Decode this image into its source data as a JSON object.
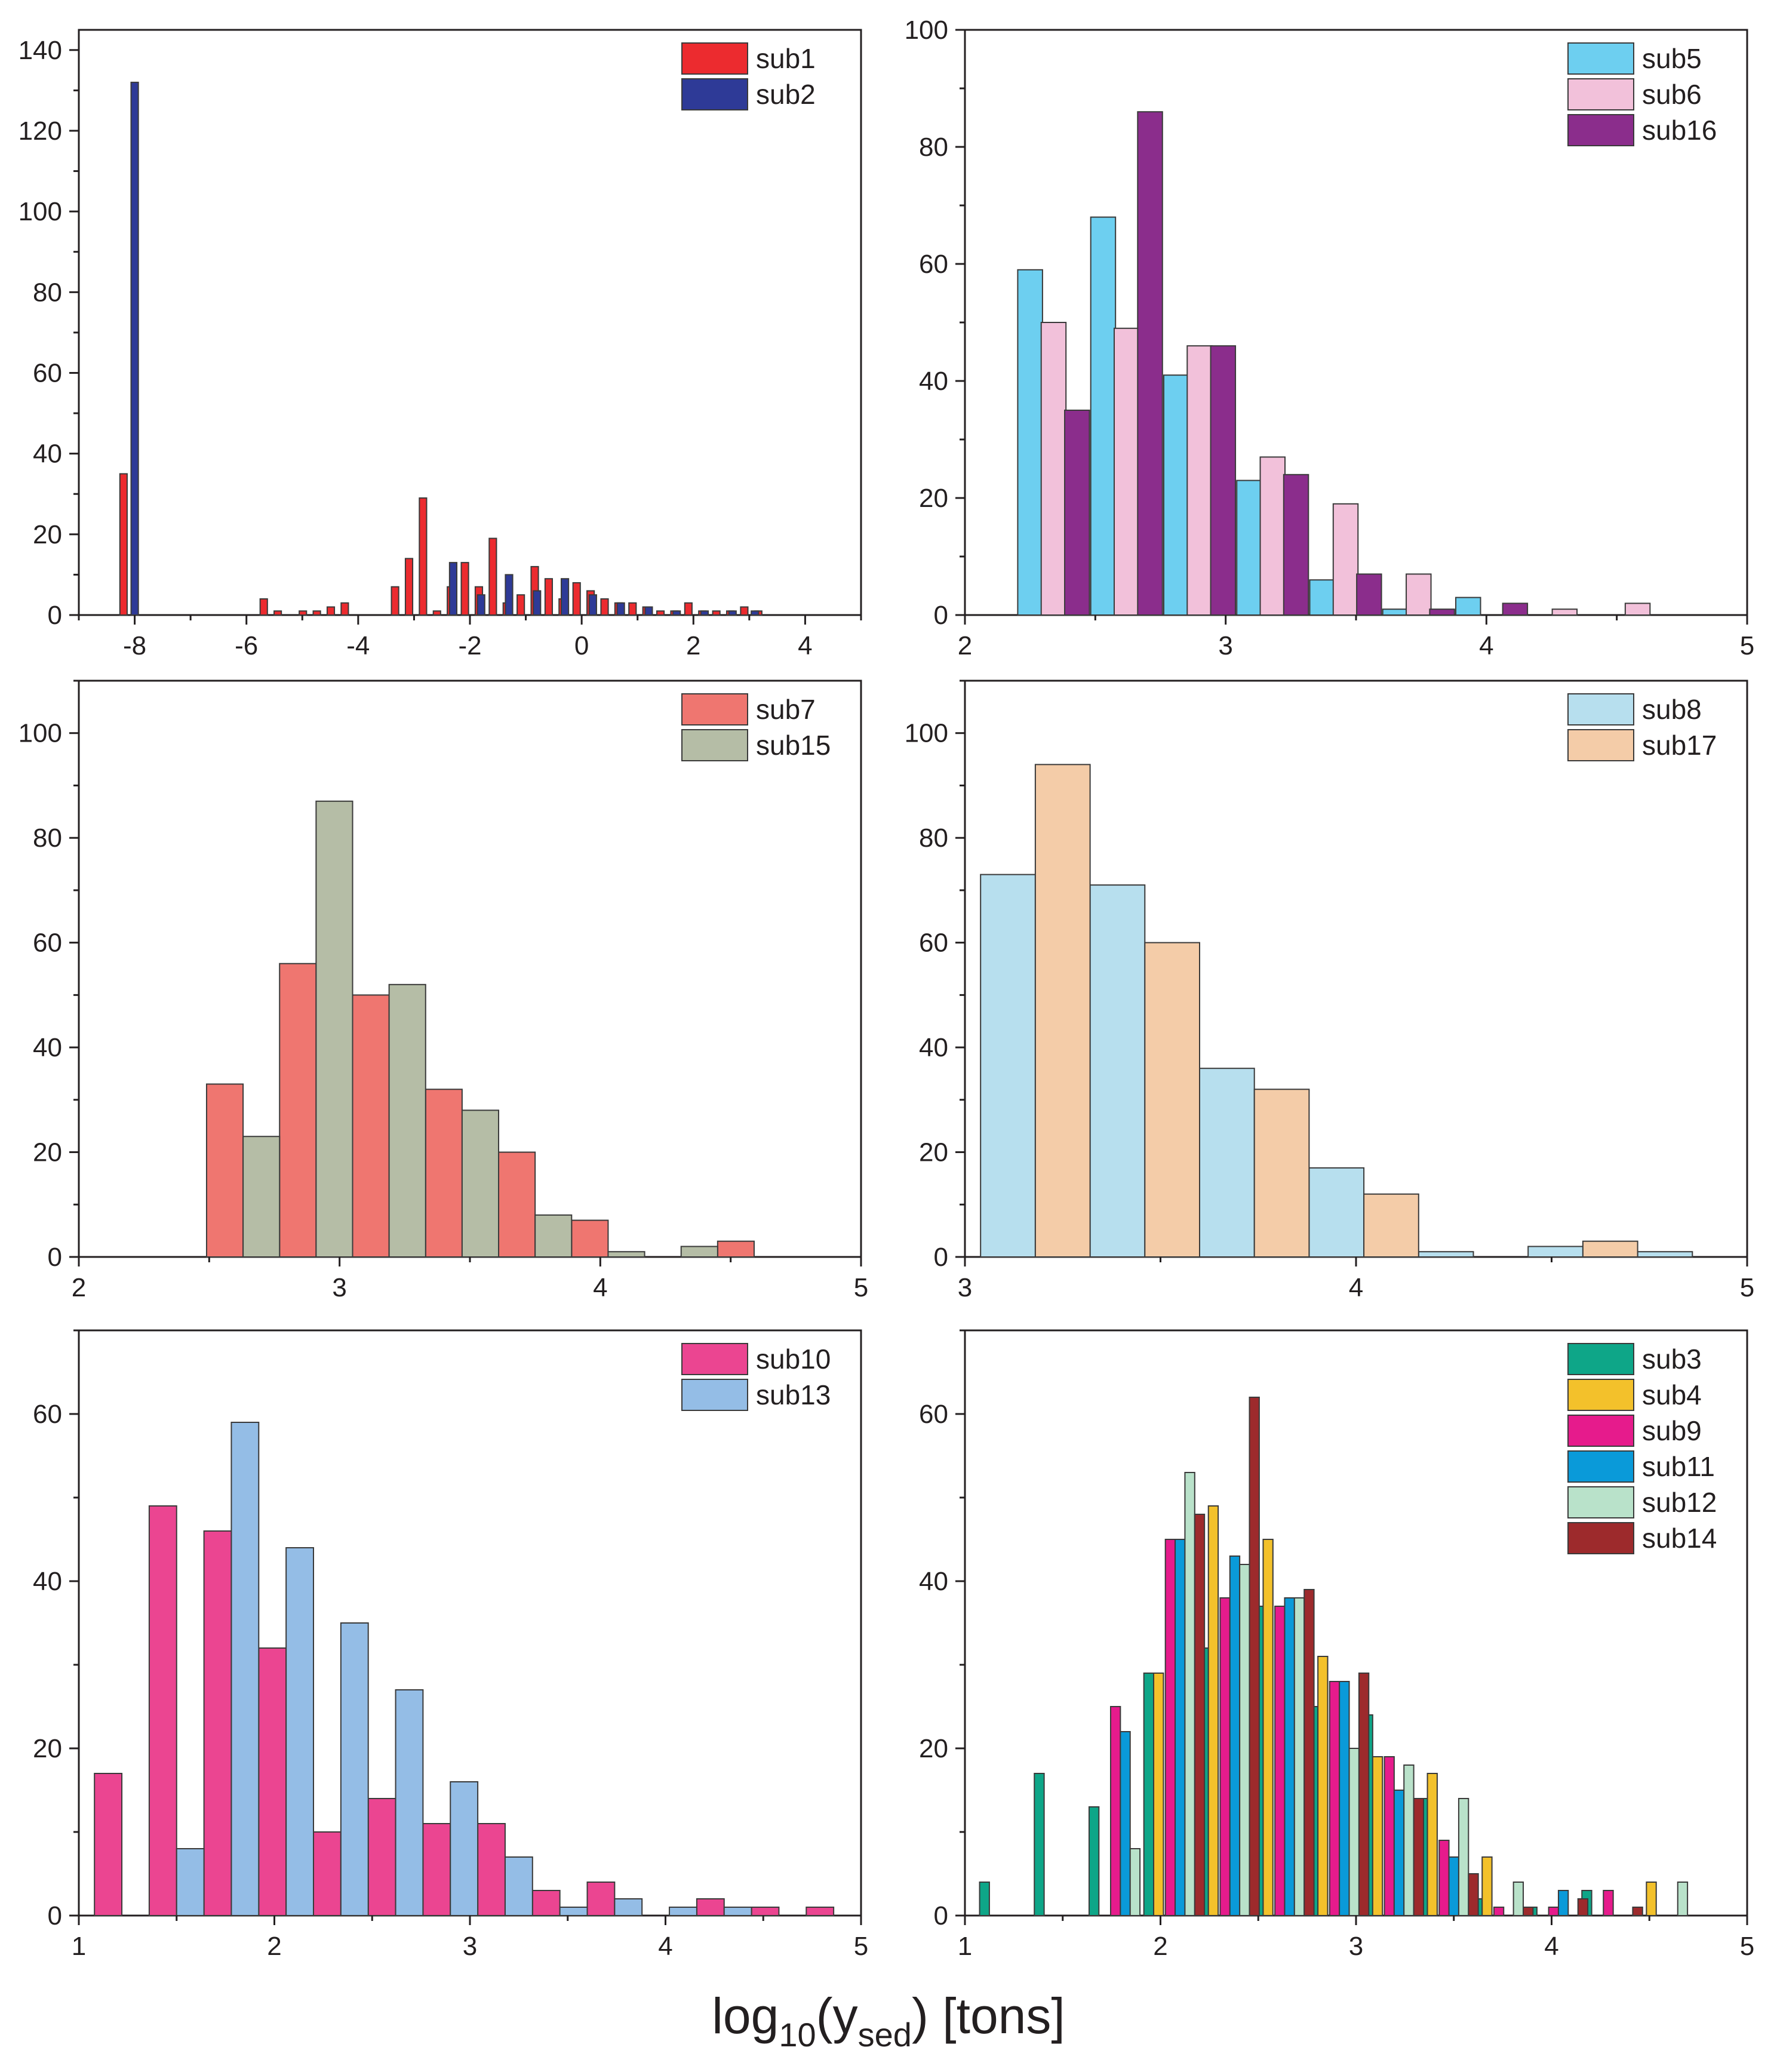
{
  "figure": {
    "xlabel": {
      "main": "log",
      "base": "10",
      "open": "(y",
      "sub": "sed",
      "close": ") [tons]"
    }
  },
  "chart_data": [
    {
      "type": "bar",
      "id": "p1",
      "xlim": [
        -9,
        5
      ],
      "ylim": [
        0,
        145
      ],
      "xticks": [
        -8,
        -6,
        -4,
        -2,
        0,
        2,
        4
      ],
      "yticks": [
        0,
        20,
        40,
        60,
        80,
        100,
        120,
        140
      ],
      "bar_width": 0.13,
      "series": [
        {
          "name": "sub1",
          "color": "#ec2b2f",
          "offset": -0.14,
          "bins": [
            [
              -8.06,
              35
            ],
            [
              -5.55,
              4
            ],
            [
              -5.3,
              1
            ],
            [
              -4.85,
              1
            ],
            [
              -4.6,
              1
            ],
            [
              -4.35,
              2
            ],
            [
              -4.1,
              3
            ],
            [
              -3.2,
              7
            ],
            [
              -2.95,
              14
            ],
            [
              -2.7,
              29
            ],
            [
              -2.45,
              1
            ],
            [
              -2.2,
              7
            ],
            [
              -1.95,
              13
            ],
            [
              -1.7,
              7
            ],
            [
              -1.45,
              19
            ],
            [
              -1.2,
              3
            ],
            [
              -0.95,
              5
            ],
            [
              -0.7,
              12
            ],
            [
              -0.45,
              9
            ],
            [
              -0.2,
              4
            ],
            [
              0.05,
              8
            ],
            [
              0.3,
              6
            ],
            [
              0.55,
              4
            ],
            [
              0.8,
              3
            ],
            [
              1.05,
              3
            ],
            [
              1.3,
              2
            ],
            [
              1.55,
              1
            ],
            [
              1.8,
              1
            ],
            [
              2.05,
              3
            ],
            [
              2.3,
              1
            ],
            [
              2.55,
              1
            ],
            [
              2.8,
              1
            ],
            [
              3.05,
              2
            ],
            [
              3.3,
              1
            ]
          ]
        },
        {
          "name": "sub2",
          "color": "#2e3a97",
          "offset": 0,
          "bins": [
            [
              -8.0,
              132
            ],
            [
              -2.3,
              13
            ],
            [
              -1.8,
              5
            ],
            [
              -1.3,
              10
            ],
            [
              -0.8,
              6
            ],
            [
              -0.3,
              9
            ],
            [
              0.2,
              5
            ],
            [
              0.7,
              3
            ],
            [
              1.2,
              2
            ],
            [
              1.7,
              1
            ],
            [
              2.2,
              1
            ],
            [
              2.7,
              1
            ],
            [
              3.1,
              1
            ]
          ]
        }
      ],
      "legend": {
        "location": "top-right"
      }
    },
    {
      "type": "bar",
      "id": "p2",
      "xlim": [
        2,
        5
      ],
      "ylim": [
        0,
        100
      ],
      "xticks": [
        2,
        3,
        4,
        5
      ],
      "yticks": [
        0,
        20,
        40,
        60,
        80,
        100
      ],
      "bar_width": 0.095,
      "series": [
        {
          "name": "sub5",
          "color": "#6dcff0",
          "offset": 0,
          "bins": [
            [
              2.25,
              59
            ],
            [
              2.53,
              68
            ],
            [
              2.81,
              41
            ],
            [
              3.09,
              23
            ],
            [
              3.37,
              6
            ],
            [
              3.65,
              1
            ],
            [
              3.93,
              3
            ]
          ]
        },
        {
          "name": "sub6",
          "color": "#f2c1da",
          "offset": 0,
          "bins": [
            [
              2.34,
              50
            ],
            [
              2.62,
              49
            ],
            [
              2.9,
              46
            ],
            [
              3.18,
              27
            ],
            [
              3.46,
              19
            ],
            [
              3.74,
              7
            ],
            [
              4.02,
              0
            ],
            [
              4.3,
              1
            ],
            [
              4.58,
              2
            ]
          ]
        },
        {
          "name": "sub16",
          "color": "#8b2d8c",
          "offset": 0,
          "bins": [
            [
              2.43,
              35
            ],
            [
              2.71,
              86
            ],
            [
              2.99,
              46
            ],
            [
              3.27,
              24
            ],
            [
              3.55,
              7
            ],
            [
              3.83,
              1
            ],
            [
              4.11,
              2
            ]
          ]
        }
      ],
      "legend": {
        "location": "top-right"
      }
    },
    {
      "type": "bar",
      "id": "p3",
      "xlim": [
        2,
        5
      ],
      "ylim": [
        0,
        110
      ],
      "xticks": [
        2,
        3,
        4,
        5
      ],
      "yticks": [
        0,
        20,
        40,
        60,
        80,
        100
      ],
      "bar_width": 0.14,
      "series": [
        {
          "name": "sub7",
          "color": "#ef7670",
          "offset": 0,
          "bins": [
            [
              2.56,
              33
            ],
            [
              2.84,
              56
            ],
            [
              3.12,
              50
            ],
            [
              3.4,
              32
            ],
            [
              3.68,
              20
            ],
            [
              3.96,
              7
            ],
            [
              4.52,
              3
            ]
          ]
        },
        {
          "name": "sub15",
          "color": "#b5bda6",
          "offset": 0,
          "bins": [
            [
              2.7,
              23
            ],
            [
              2.98,
              87
            ],
            [
              3.26,
              52
            ],
            [
              3.54,
              28
            ],
            [
              3.82,
              8
            ],
            [
              4.1,
              1
            ],
            [
              4.38,
              2
            ]
          ]
        }
      ],
      "legend": {
        "location": "top-right"
      }
    },
    {
      "type": "bar",
      "id": "p4",
      "xlim": [
        3,
        5
      ],
      "ylim": [
        0,
        110
      ],
      "xticks": [
        3,
        4,
        5
      ],
      "yticks": [
        0,
        20,
        40,
        60,
        80,
        100
      ],
      "bar_width": 0.14,
      "series": [
        {
          "name": "sub8",
          "color": "#b7dfee",
          "offset": 0,
          "bins": [
            [
              3.11,
              73
            ],
            [
              3.39,
              71
            ],
            [
              3.67,
              36
            ],
            [
              3.95,
              17
            ],
            [
              4.23,
              1
            ],
            [
              4.51,
              2
            ],
            [
              4.79,
              1
            ]
          ]
        },
        {
          "name": "sub17",
          "color": "#f4cca8",
          "offset": 0,
          "bins": [
            [
              3.25,
              94
            ],
            [
              3.53,
              60
            ],
            [
              3.81,
              32
            ],
            [
              4.09,
              12
            ],
            [
              4.65,
              3
            ]
          ]
        }
      ],
      "legend": {
        "location": "top-right"
      }
    },
    {
      "type": "bar",
      "id": "p5",
      "xlim": [
        1,
        5
      ],
      "ylim": [
        0,
        70
      ],
      "xticks": [
        1,
        2,
        3,
        4,
        5
      ],
      "yticks": [
        0,
        20,
        40,
        60
      ],
      "bar_width": 0.14,
      "series": [
        {
          "name": "sub10",
          "color": "#eb4591",
          "offset": 0,
          "bins": [
            [
              1.15,
              17
            ],
            [
              1.43,
              49
            ],
            [
              1.71,
              46
            ],
            [
              1.99,
              32
            ],
            [
              2.27,
              10
            ],
            [
              2.55,
              14
            ],
            [
              2.83,
              11
            ],
            [
              3.11,
              11
            ],
            [
              3.39,
              3
            ],
            [
              3.67,
              4
            ],
            [
              4.23,
              2
            ],
            [
              4.51,
              1
            ],
            [
              4.79,
              1
            ]
          ]
        },
        {
          "name": "sub13",
          "color": "#94bde6",
          "offset": 0,
          "bins": [
            [
              1.57,
              8
            ],
            [
              1.85,
              59
            ],
            [
              2.13,
              44
            ],
            [
              2.41,
              35
            ],
            [
              2.69,
              27
            ],
            [
              2.97,
              16
            ],
            [
              3.25,
              7
            ],
            [
              3.53,
              1
            ],
            [
              3.81,
              2
            ],
            [
              4.09,
              1
            ],
            [
              4.37,
              1
            ]
          ]
        }
      ],
      "legend": {
        "location": "top-right"
      }
    },
    {
      "type": "bar",
      "id": "p6",
      "xlim": [
        1,
        5
      ],
      "ylim": [
        0,
        70
      ],
      "xticks": [
        1,
        2,
        3,
        4,
        5
      ],
      "yticks": [
        0,
        20,
        40,
        60
      ],
      "bar_width": 0.05,
      "series": [
        {
          "name": "sub3",
          "color": "#0ea688",
          "offset": 0,
          "bins": [
            [
              1.1,
              4
            ],
            [
              1.38,
              17
            ],
            [
              1.66,
              13
            ],
            [
              1.94,
              29
            ],
            [
              2.22,
              32
            ],
            [
              2.5,
              37
            ],
            [
              2.78,
              25
            ],
            [
              3.06,
              24
            ],
            [
              3.34,
              14
            ],
            [
              3.62,
              2
            ],
            [
              3.9,
              1
            ],
            [
              4.18,
              3
            ]
          ]
        },
        {
          "name": "sub4",
          "color": "#f3c12b",
          "offset": 0,
          "bins": [
            [
              1.99,
              29
            ],
            [
              2.27,
              49
            ],
            [
              2.55,
              45
            ],
            [
              2.83,
              31
            ],
            [
              3.11,
              19
            ],
            [
              3.39,
              17
            ],
            [
              3.67,
              7
            ],
            [
              4.51,
              4
            ]
          ]
        },
        {
          "name": "sub9",
          "color": "#e61b8c",
          "offset": 0,
          "bins": [
            [
              1.77,
              25
            ],
            [
              2.05,
              45
            ],
            [
              2.33,
              38
            ],
            [
              2.61,
              37
            ],
            [
              2.89,
              28
            ],
            [
              3.17,
              19
            ],
            [
              3.45,
              9
            ],
            [
              3.73,
              1
            ],
            [
              4.01,
              1
            ],
            [
              4.29,
              3
            ]
          ]
        },
        {
          "name": "sub11",
          "color": "#0a9ad9",
          "offset": 0,
          "bins": [
            [
              1.82,
              22
            ],
            [
              2.1,
              45
            ],
            [
              2.38,
              43
            ],
            [
              2.66,
              38
            ],
            [
              2.94,
              28
            ],
            [
              3.22,
              15
            ],
            [
              3.5,
              7
            ],
            [
              4.06,
              3
            ]
          ]
        },
        {
          "name": "sub12",
          "color": "#b9e2ca",
          "offset": 0,
          "bins": [
            [
              1.87,
              8
            ],
            [
              2.15,
              53
            ],
            [
              2.43,
              42
            ],
            [
              2.71,
              38
            ],
            [
              2.99,
              20
            ],
            [
              3.27,
              18
            ],
            [
              3.55,
              14
            ],
            [
              3.83,
              4
            ],
            [
              4.67,
              4
            ]
          ]
        },
        {
          "name": "sub14",
          "color": "#9d2a2c",
          "offset": 0,
          "bins": [
            [
              2.2,
              48
            ],
            [
              2.48,
              62
            ],
            [
              2.76,
              39
            ],
            [
              3.04,
              29
            ],
            [
              3.32,
              14
            ],
            [
              3.6,
              5
            ],
            [
              3.88,
              1
            ],
            [
              4.16,
              2
            ],
            [
              4.44,
              1
            ]
          ]
        }
      ],
      "legend": {
        "location": "top-right"
      }
    }
  ]
}
